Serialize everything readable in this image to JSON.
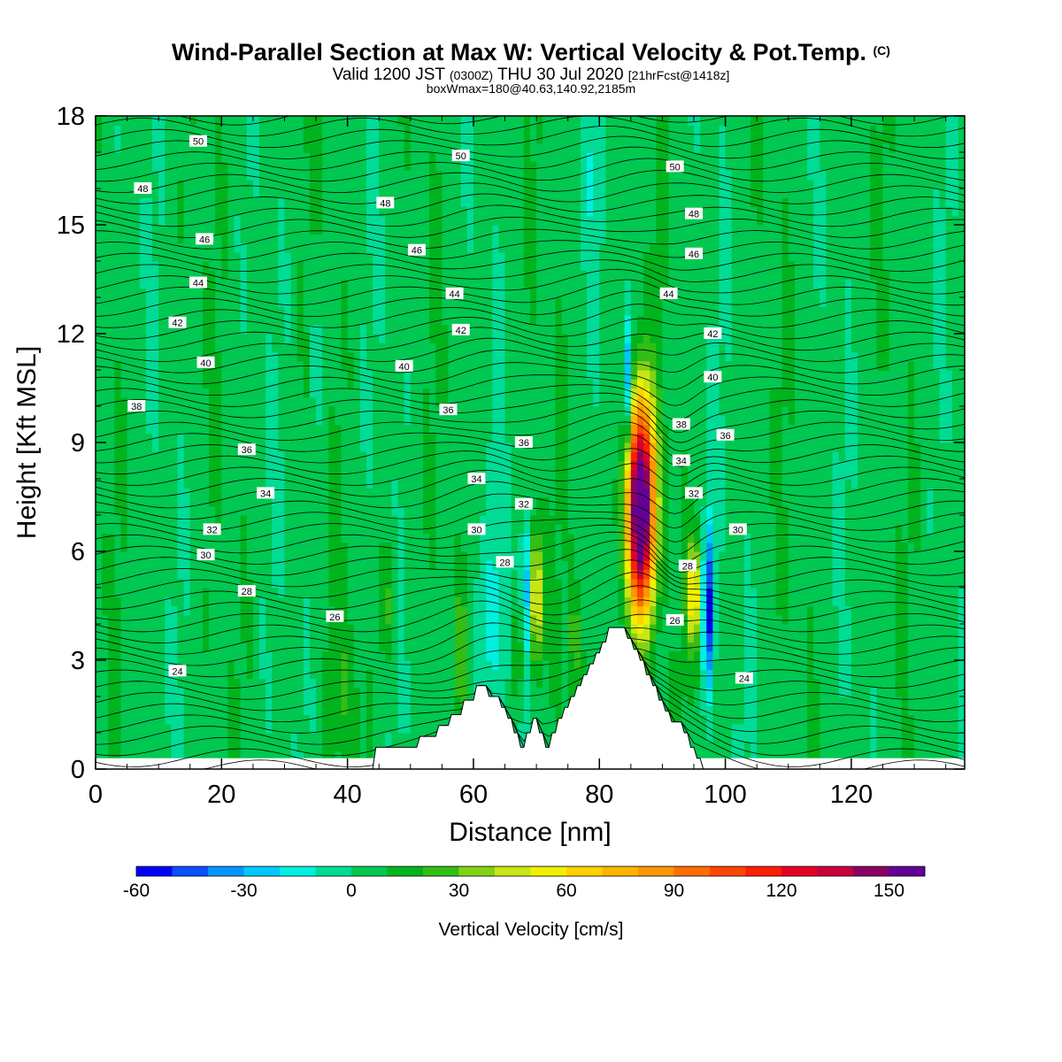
{
  "header": {
    "title": "Wind-Parallel Section at Max W: Vertical Velocity & Pot.Temp.",
    "title_mark": "(C)",
    "valid_prefix": "Valid 1200 JST",
    "valid_utc": "(0300Z)",
    "valid_date": "THU 30 Jul 2020",
    "forecast": "[21hrFcst@1418z]",
    "box_info": "boxWmax=180@40.63,140.92,2185m"
  },
  "chart_data": {
    "type": "heatmap",
    "xlabel": "Distance [nm]",
    "ylabel": "Height [Kft MSL]",
    "xlim": [
      0,
      138
    ],
    "ylim": [
      0,
      18
    ],
    "x_ticks": [
      0,
      20,
      40,
      60,
      80,
      100,
      120
    ],
    "y_ticks": [
      0,
      3,
      6,
      9,
      12,
      15,
      18
    ],
    "colorbar": {
      "label": "Vertical Velocity [cm/s]",
      "range": [
        -60,
        160
      ],
      "tick_values": [
        -60,
        -30,
        0,
        30,
        60,
        90,
        120,
        150
      ],
      "colors": [
        "#0000ff",
        "#0a50ff",
        "#0096ff",
        "#00c8ff",
        "#00f0e0",
        "#00dc96",
        "#00c850",
        "#00b41e",
        "#32be14",
        "#82d214",
        "#c8e614",
        "#f0f000",
        "#ffd200",
        "#ffb400",
        "#ff9600",
        "#ff6e00",
        "#ff4600",
        "#ff1e00",
        "#e60028",
        "#c8003c",
        "#8c0064",
        "#640096"
      ]
    },
    "terrain_nm_kft": [
      [
        0,
        0
      ],
      [
        44,
        0
      ],
      [
        44.5,
        0.6
      ],
      [
        51,
        0.6
      ],
      [
        51.5,
        0.9
      ],
      [
        54,
        0.9
      ],
      [
        54.5,
        1.2
      ],
      [
        56,
        1.2
      ],
      [
        56.5,
        1.5
      ],
      [
        58,
        1.5
      ],
      [
        58.5,
        1.9
      ],
      [
        60,
        1.9
      ],
      [
        60.5,
        2.3
      ],
      [
        62,
        2.3
      ],
      [
        62.5,
        2.0
      ],
      [
        64,
        2.0
      ],
      [
        64.5,
        1.7
      ],
      [
        65,
        1.7
      ],
      [
        65.5,
        1.4
      ],
      [
        66,
        1.4
      ],
      [
        66.5,
        1.0
      ],
      [
        67,
        1.0
      ],
      [
        67.5,
        0.6
      ],
      [
        68,
        0.6
      ],
      [
        68.5,
        1.0
      ],
      [
        69,
        1.0
      ],
      [
        69.5,
        1.4
      ],
      [
        70,
        1.4
      ],
      [
        70.5,
        1.0
      ],
      [
        71,
        1.0
      ],
      [
        71.5,
        0.6
      ],
      [
        72,
        0.6
      ],
      [
        72.5,
        1.0
      ],
      [
        73,
        1.0
      ],
      [
        73.5,
        1.4
      ],
      [
        74,
        1.4
      ],
      [
        74.5,
        1.7
      ],
      [
        75,
        1.7
      ],
      [
        75.5,
        2.0
      ],
      [
        76,
        2.0
      ],
      [
        76.5,
        2.3
      ],
      [
        77,
        2.3
      ],
      [
        77.5,
        2.6
      ],
      [
        78,
        2.6
      ],
      [
        78.5,
        2.9
      ],
      [
        79,
        2.9
      ],
      [
        79.5,
        3.2
      ],
      [
        80,
        3.2
      ],
      [
        80.5,
        3.5
      ],
      [
        81,
        3.5
      ],
      [
        81.5,
        3.9
      ],
      [
        84,
        3.9
      ],
      [
        84.5,
        3.6
      ],
      [
        85,
        3.6
      ],
      [
        85.5,
        3.3
      ],
      [
        86,
        3.3
      ],
      [
        86.5,
        3.0
      ],
      [
        87,
        3.0
      ],
      [
        87.5,
        2.6
      ],
      [
        88,
        2.6
      ],
      [
        88.5,
        2.3
      ],
      [
        89,
        2.3
      ],
      [
        89.5,
        1.9
      ],
      [
        90,
        1.9
      ],
      [
        90.5,
        1.6
      ],
      [
        91,
        1.6
      ],
      [
        91.5,
        1.3
      ],
      [
        93,
        1.3
      ],
      [
        93.5,
        1.0
      ],
      [
        94,
        1.0
      ],
      [
        94.5,
        0.6
      ],
      [
        95,
        0.6
      ],
      [
        95.5,
        0.3
      ],
      [
        96,
        0.3
      ],
      [
        96.5,
        0
      ],
      [
        138,
        0
      ]
    ],
    "updrafts": [
      {
        "x": 86.5,
        "y": 7.2,
        "peak": 180,
        "sx": 1.6,
        "sy": 2.1
      },
      {
        "x": 95.0,
        "y": 4.8,
        "peak": 55,
        "sx": 0.8,
        "sy": 1.0
      },
      {
        "x": 70.0,
        "y": 4.8,
        "peak": 55,
        "sx": 0.8,
        "sy": 1.3
      },
      {
        "x": 67.0,
        "y": 3.3,
        "peak": 30,
        "sx": 0.6,
        "sy": 1.1
      },
      {
        "x": 58.0,
        "y": 3.5,
        "peak": 20,
        "sx": 0.8,
        "sy": 1.4
      },
      {
        "x": 46.5,
        "y": 4.5,
        "peak": 18,
        "sx": 1.0,
        "sy": 1.2
      },
      {
        "x": 40.0,
        "y": 2.0,
        "peak": 14,
        "sx": 1.2,
        "sy": 1.5
      },
      {
        "x": 76.0,
        "y": 3.5,
        "peak": 18,
        "sx": 0.8,
        "sy": 1.2
      }
    ],
    "downdrafts": [
      {
        "x": 97.3,
        "y": 4.5,
        "peak": -60,
        "sx": 0.6,
        "sy": 1.6
      },
      {
        "x": 84.5,
        "y": 10.5,
        "peak": -45,
        "sx": 0.5,
        "sy": 1.4
      },
      {
        "x": 68.3,
        "y": 5.0,
        "peak": -35,
        "sx": 0.5,
        "sy": 1.3
      },
      {
        "x": 63.0,
        "y": 4.0,
        "peak": -15,
        "sx": 3.0,
        "sy": 1.6
      },
      {
        "x": 35.0,
        "y": 11.5,
        "peak": -12,
        "sx": 0.6,
        "sy": 1.5
      },
      {
        "x": 78.5,
        "y": 16.5,
        "peak": -12,
        "sx": 1.2,
        "sy": 1.5
      }
    ],
    "theta_label_values": [
      24,
      26,
      28,
      30,
      32,
      34,
      36,
      38,
      40,
      42,
      44,
      46,
      48,
      50
    ],
    "theta_labels": [
      {
        "text": "50",
        "x": 16.3,
        "y": 17.3
      },
      {
        "text": "48",
        "x": 7.5,
        "y": 16.0
      },
      {
        "text": "46",
        "x": 17.3,
        "y": 14.6
      },
      {
        "text": "44",
        "x": 16.3,
        "y": 13.4
      },
      {
        "text": "42",
        "x": 13.0,
        "y": 12.3
      },
      {
        "text": "40",
        "x": 17.5,
        "y": 11.2
      },
      {
        "text": "38",
        "x": 6.5,
        "y": 10.0
      },
      {
        "text": "36",
        "x": 24.0,
        "y": 8.8
      },
      {
        "text": "34",
        "x": 27.0,
        "y": 7.6
      },
      {
        "text": "32",
        "x": 18.5,
        "y": 6.6
      },
      {
        "text": "30",
        "x": 17.5,
        "y": 5.9
      },
      {
        "text": "28",
        "x": 24.0,
        "y": 4.9
      },
      {
        "text": "26",
        "x": 38.0,
        "y": 4.2
      },
      {
        "text": "24",
        "x": 13.0,
        "y": 2.7
      },
      {
        "text": "50",
        "x": 58.0,
        "y": 16.9
      },
      {
        "text": "48",
        "x": 46.0,
        "y": 15.6
      },
      {
        "text": "46",
        "x": 51.0,
        "y": 14.3
      },
      {
        "text": "44",
        "x": 57.0,
        "y": 13.1
      },
      {
        "text": "42",
        "x": 58.0,
        "y": 12.1
      },
      {
        "text": "40",
        "x": 49.0,
        "y": 11.1
      },
      {
        "text": "36",
        "x": 56.0,
        "y": 9.9
      },
      {
        "text": "36",
        "x": 68.0,
        "y": 9.0
      },
      {
        "text": "34",
        "x": 60.5,
        "y": 8.0
      },
      {
        "text": "32",
        "x": 68.0,
        "y": 7.3
      },
      {
        "text": "30",
        "x": 60.5,
        "y": 6.6
      },
      {
        "text": "28",
        "x": 65.0,
        "y": 5.7
      },
      {
        "text": "50",
        "x": 92.0,
        "y": 16.6
      },
      {
        "text": "48",
        "x": 95.0,
        "y": 15.3
      },
      {
        "text": "46",
        "x": 95.0,
        "y": 14.2
      },
      {
        "text": "44",
        "x": 91.0,
        "y": 13.1
      },
      {
        "text": "42",
        "x": 98.0,
        "y": 12.0
      },
      {
        "text": "40",
        "x": 98.0,
        "y": 10.8
      },
      {
        "text": "38",
        "x": 93.0,
        "y": 9.5
      },
      {
        "text": "36",
        "x": 100.0,
        "y": 9.2
      },
      {
        "text": "34",
        "x": 93.0,
        "y": 8.5
      },
      {
        "text": "32",
        "x": 95.0,
        "y": 7.6
      },
      {
        "text": "30",
        "x": 102.0,
        "y": 6.6
      },
      {
        "text": "28",
        "x": 94.0,
        "y": 5.6
      },
      {
        "text": "26",
        "x": 92.0,
        "y": 4.1
      },
      {
        "text": "24",
        "x": 103.0,
        "y": 2.5
      }
    ]
  }
}
